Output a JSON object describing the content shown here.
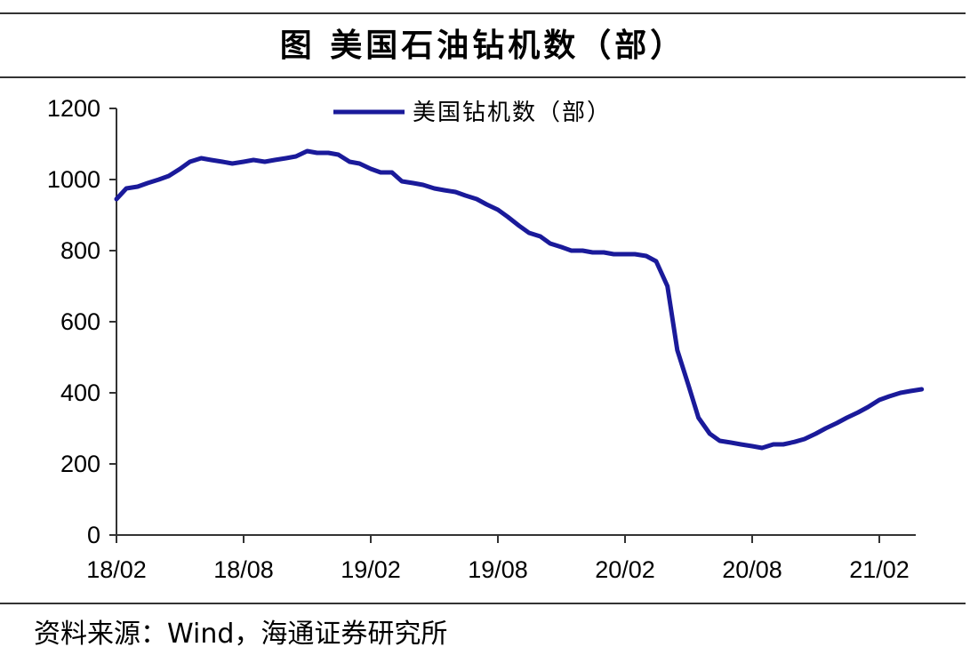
{
  "title": "图  美国石油钻机数（部）",
  "source": "资料来源：Wind，海通证券研究所",
  "colors": {
    "series": "#1a1a9a",
    "axis": "#333333",
    "rule": "#333333"
  },
  "chart_data": {
    "type": "line",
    "title": "图  美国石油钻机数（部）",
    "xlabel": "",
    "ylabel": "",
    "ylim": [
      0,
      1200
    ],
    "yticks": [
      0,
      200,
      400,
      600,
      800,
      1000,
      1200
    ],
    "xticks": [
      "18/02",
      "18/08",
      "19/02",
      "19/08",
      "20/02",
      "20/08",
      "21/02"
    ],
    "x_range": [
      "2018-02",
      "2021-04"
    ],
    "grid": false,
    "legend_position": "top-center",
    "series": [
      {
        "name": "美国钻机数（部）",
        "x": [
          "2018-02",
          "2018-02-15",
          "2018-03",
          "2018-03-15",
          "2018-04",
          "2018-04-15",
          "2018-05",
          "2018-05-15",
          "2018-06",
          "2018-06-15",
          "2018-07",
          "2018-07-15",
          "2018-08",
          "2018-08-15",
          "2018-09",
          "2018-09-15",
          "2018-10",
          "2018-10-15",
          "2018-11",
          "2018-11-15",
          "2018-12",
          "2018-12-15",
          "2019-01",
          "2019-01-15",
          "2019-02",
          "2019-02-15",
          "2019-03",
          "2019-03-15",
          "2019-04",
          "2019-04-15",
          "2019-05",
          "2019-05-15",
          "2019-06",
          "2019-06-15",
          "2019-07",
          "2019-07-15",
          "2019-08",
          "2019-08-15",
          "2019-09",
          "2019-09-15",
          "2019-10",
          "2019-10-15",
          "2019-11",
          "2019-11-15",
          "2019-12",
          "2019-12-15",
          "2020-01",
          "2020-01-15",
          "2020-02",
          "2020-02-15",
          "2020-03",
          "2020-03-15",
          "2020-04",
          "2020-04-15",
          "2020-05",
          "2020-05-15",
          "2020-06",
          "2020-06-15",
          "2020-07",
          "2020-07-15",
          "2020-08",
          "2020-08-15",
          "2020-09",
          "2020-09-15",
          "2020-10",
          "2020-10-15",
          "2020-11",
          "2020-11-15",
          "2020-12",
          "2020-12-15",
          "2021-01",
          "2021-01-15",
          "2021-02",
          "2021-02-15",
          "2021-03",
          "2021-03-15",
          "2021-04"
        ],
        "values": [
          945,
          975,
          980,
          990,
          1000,
          1010,
          1030,
          1050,
          1060,
          1055,
          1050,
          1045,
          1050,
          1055,
          1050,
          1055,
          1060,
          1065,
          1080,
          1075,
          1075,
          1070,
          1050,
          1045,
          1030,
          1020,
          1020,
          995,
          990,
          985,
          975,
          970,
          965,
          955,
          945,
          930,
          915,
          895,
          870,
          850,
          840,
          820,
          810,
          800,
          800,
          795,
          795,
          790,
          790,
          790,
          785,
          770,
          700,
          520,
          420,
          330,
          285,
          265,
          260,
          255,
          250,
          245,
          255,
          255,
          262,
          270,
          285,
          300,
          315,
          330,
          345,
          360,
          380,
          390,
          400,
          405,
          410
        ]
      }
    ]
  }
}
